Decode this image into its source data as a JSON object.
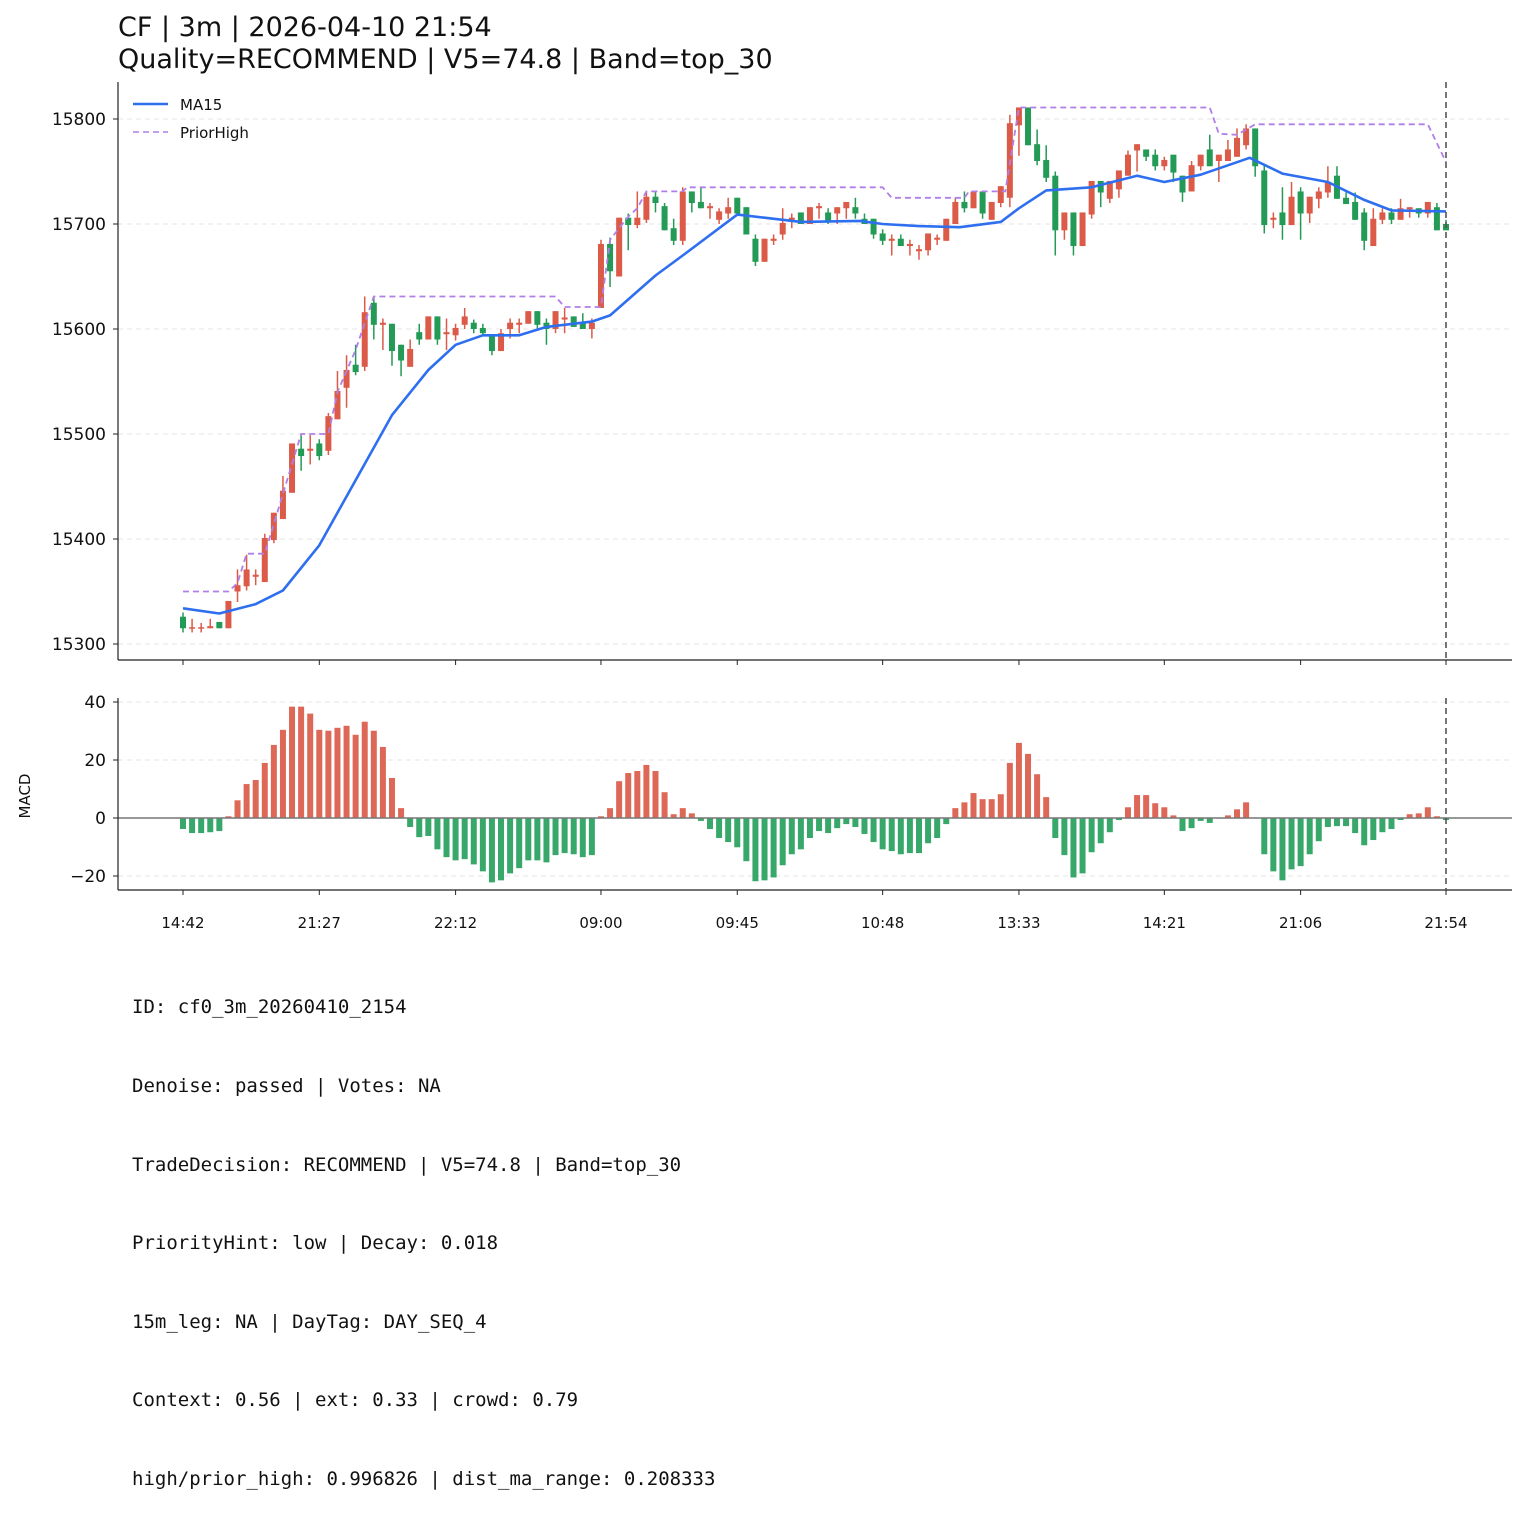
{
  "chart_data": {
    "type": "candlestick",
    "title_line1": "CF | 3m | 2026-04-10 21:54",
    "title_line2": "Quality=RECOMMEND | V5=74.8 | Band=top_30",
    "price_ylim": [
      15270,
      15835
    ],
    "price_yticks": [
      15300,
      15400,
      15500,
      15600,
      15700,
      15800
    ],
    "macd_ylim": [
      -25,
      42
    ],
    "macd_yticks": [
      40,
      20,
      0,
      -20
    ],
    "macd_ytick_labels": [
      "40",
      "20",
      "0",
      "−20"
    ],
    "macd_ylabel": "MACD",
    "xticks": [
      {
        "index": 0,
        "label": "14:42"
      },
      {
        "index": 15,
        "label": "21:27"
      },
      {
        "index": 30,
        "label": "22:12"
      },
      {
        "index": 46,
        "label": "09:00"
      },
      {
        "index": 61,
        "label": "09:45"
      },
      {
        "index": 77,
        "label": "10:48"
      },
      {
        "index": 92,
        "label": "13:33"
      },
      {
        "index": 108,
        "label": "14:21"
      },
      {
        "index": 123,
        "label": "21:06"
      },
      {
        "index": 139,
        "label": "21:54"
      }
    ],
    "marker_index": 139,
    "legend": [
      {
        "name": "MA15",
        "style": "solid"
      },
      {
        "name": "PriorHigh",
        "style": "dashed"
      }
    ],
    "legend_position": "top-left",
    "grid": true,
    "colors": {
      "up": "#dc5a48",
      "down": "#239a55",
      "macd_up": "#de6857",
      "macd_down": "#37a86a",
      "ma15": "#2e6ff0",
      "prior_high": "#b07fe8",
      "marker": "#555555"
    },
    "candles_ohlc": [
      [
        15326,
        15330,
        15311,
        15315
      ],
      [
        15315,
        15324,
        15311,
        15316
      ],
      [
        15315,
        15320,
        15311,
        15316
      ],
      [
        15315,
        15324,
        15315,
        15317
      ],
      [
        15321,
        15321,
        15315,
        15315
      ],
      [
        15315,
        15341,
        15315,
        15341
      ],
      [
        15350,
        15371,
        15340,
        15356
      ],
      [
        15355,
        15385,
        15351,
        15371
      ],
      [
        15364,
        15371,
        15356,
        15366
      ],
      [
        15359,
        15405,
        15359,
        15401
      ],
      [
        15399,
        15425,
        15396,
        15425
      ],
      [
        15419,
        15460,
        15419,
        15446
      ],
      [
        15444,
        15491,
        15444,
        15491
      ],
      [
        15486,
        15500,
        15465,
        15479
      ],
      [
        15484,
        15499,
        15471,
        15486
      ],
      [
        15491,
        15495,
        15475,
        15479
      ],
      [
        15484,
        15520,
        15480,
        15517
      ],
      [
        15514,
        15560,
        15514,
        15541
      ],
      [
        15544,
        15575,
        15525,
        15561
      ],
      [
        15566,
        15585,
        15556,
        15559
      ],
      [
        15564,
        15631,
        15560,
        15616
      ],
      [
        15625,
        15631,
        15590,
        15604
      ],
      [
        15604,
        15610,
        15580,
        15606
      ],
      [
        15605,
        15605,
        15565,
        15579
      ],
      [
        15585,
        15585,
        15555,
        15570
      ],
      [
        15564,
        15590,
        15564,
        15581
      ],
      [
        15597,
        15605,
        15585,
        15590
      ],
      [
        15590,
        15612,
        15590,
        15612
      ],
      [
        15612,
        15612,
        15585,
        15590
      ],
      [
        15595,
        15610,
        15580,
        15597
      ],
      [
        15594,
        15605,
        15589,
        15601
      ],
      [
        15604,
        15620,
        15600,
        15612
      ],
      [
        15606,
        15609,
        15596,
        15600
      ],
      [
        15601,
        15605,
        15593,
        15596
      ],
      [
        15595,
        15595,
        15575,
        15579
      ],
      [
        15579,
        15600,
        15579,
        15596
      ],
      [
        15600,
        15610,
        15591,
        15606
      ],
      [
        15604,
        15610,
        15596,
        15606
      ],
      [
        15605,
        15617,
        15605,
        15617
      ],
      [
        15617,
        15617,
        15600,
        15604
      ],
      [
        15606,
        15610,
        15585,
        15600
      ],
      [
        15600,
        15617,
        15596,
        15617
      ],
      [
        15609,
        15620,
        15596,
        15611
      ],
      [
        15612,
        15612,
        15602,
        15602
      ],
      [
        15606,
        15615,
        15600,
        15600
      ],
      [
        15600,
        15610,
        15591,
        15606
      ],
      [
        15620,
        15685,
        15620,
        15681
      ],
      [
        15681,
        15687,
        15640,
        15655
      ],
      [
        15650,
        15706,
        15650,
        15706
      ],
      [
        15706,
        15710,
        15675,
        15699
      ],
      [
        15699,
        15731,
        15696,
        15706
      ],
      [
        15704,
        15731,
        15701,
        15726
      ],
      [
        15726,
        15731,
        15711,
        15720
      ],
      [
        15717,
        15720,
        15694,
        15694
      ],
      [
        15696,
        15705,
        15680,
        15684
      ],
      [
        15684,
        15735,
        15680,
        15731
      ],
      [
        15731,
        15731,
        15711,
        15720
      ],
      [
        15721,
        15735,
        15715,
        15715
      ],
      [
        15715,
        15720,
        15705,
        15717
      ],
      [
        15704,
        15715,
        15700,
        15712
      ],
      [
        15710,
        15725,
        15705,
        15716
      ],
      [
        15725,
        15725,
        15710,
        15710
      ],
      [
        15716,
        15716,
        15690,
        15690
      ],
      [
        15686,
        15690,
        15660,
        15664
      ],
      [
        15664,
        15686,
        15664,
        15686
      ],
      [
        15684,
        15690,
        15680,
        15686
      ],
      [
        15690,
        15715,
        15685,
        15701
      ],
      [
        15704,
        15710,
        15696,
        15706
      ],
      [
        15711,
        15711,
        15700,
        15700
      ],
      [
        15700,
        15716,
        15700,
        15716
      ],
      [
        15715,
        15720,
        15705,
        15717
      ],
      [
        15711,
        15715,
        15700,
        15702
      ],
      [
        15710,
        15716,
        15700,
        15716
      ],
      [
        15715,
        15721,
        15705,
        15721
      ],
      [
        15716,
        15725,
        15705,
        15710
      ],
      [
        15705,
        15710,
        15700,
        15700
      ],
      [
        15705,
        15705,
        15686,
        15690
      ],
      [
        15691,
        15695,
        15680,
        15684
      ],
      [
        15684,
        15690,
        15670,
        15686
      ],
      [
        15686,
        15690,
        15679,
        15679
      ],
      [
        15679,
        15685,
        15670,
        15681
      ],
      [
        15674,
        15680,
        15666,
        15676
      ],
      [
        15675,
        15691,
        15670,
        15691
      ],
      [
        15685,
        15690,
        15680,
        15687
      ],
      [
        15684,
        15705,
        15684,
        15705
      ],
      [
        15700,
        15725,
        15700,
        15721
      ],
      [
        15721,
        15731,
        15711,
        15715
      ],
      [
        15715,
        15731,
        15715,
        15731
      ],
      [
        15731,
        15731,
        15705,
        15710
      ],
      [
        15704,
        15721,
        15704,
        15721
      ],
      [
        15720,
        15736,
        15716,
        15736
      ],
      [
        15725,
        15804,
        15716,
        15796
      ],
      [
        15794,
        15811,
        15765,
        15811
      ],
      [
        15811,
        15811,
        15775,
        15775
      ],
      [
        15776,
        15790,
        15756,
        15760
      ],
      [
        15761,
        15775,
        15740,
        15744
      ],
      [
        15746,
        15750,
        15670,
        15694
      ],
      [
        15694,
        15711,
        15685,
        15711
      ],
      [
        15711,
        15711,
        15670,
        15679
      ],
      [
        15679,
        15711,
        15679,
        15711
      ],
      [
        15709,
        15741,
        15705,
        15741
      ],
      [
        15741,
        15741,
        15716,
        15730
      ],
      [
        15724,
        15741,
        15720,
        15741
      ],
      [
        15733,
        15751,
        15725,
        15751
      ],
      [
        15746,
        15770,
        15746,
        15766
      ],
      [
        15770,
        15776,
        15750,
        15776
      ],
      [
        15771,
        15771,
        15760,
        15764
      ],
      [
        15766,
        15771,
        15751,
        15755
      ],
      [
        15755,
        15764,
        15751,
        15761
      ],
      [
        15766,
        15766,
        15740,
        15749
      ],
      [
        15746,
        15746,
        15721,
        15730
      ],
      [
        15731,
        15760,
        15731,
        15756
      ],
      [
        15755,
        15766,
        15751,
        15766
      ],
      [
        15771,
        15785,
        15755,
        15755
      ],
      [
        15760,
        15766,
        15740,
        15766
      ],
      [
        15760,
        15780,
        15760,
        15771
      ],
      [
        15764,
        15791,
        15764,
        15782
      ],
      [
        15775,
        15795,
        15771,
        15791
      ],
      [
        15791,
        15791,
        15745,
        15755
      ],
      [
        15751,
        15756,
        15691,
        15699
      ],
      [
        15704,
        15711,
        15696,
        15706
      ],
      [
        15711,
        15735,
        15685,
        15699
      ],
      [
        15699,
        15740,
        15699,
        15726
      ],
      [
        15731,
        15735,
        15685,
        15710
      ],
      [
        15710,
        15726,
        15701,
        15726
      ],
      [
        15724,
        15735,
        15715,
        15731
      ],
      [
        15730,
        15755,
        15725,
        15740
      ],
      [
        15746,
        15755,
        15724,
        15724
      ],
      [
        15725,
        15730,
        15719,
        15719
      ],
      [
        15721,
        15730,
        15704,
        15704
      ],
      [
        15711,
        15715,
        15675,
        15684
      ],
      [
        15679,
        15715,
        15679,
        15705
      ],
      [
        15704,
        15715,
        15700,
        15711
      ],
      [
        15711,
        15715,
        15700,
        15704
      ],
      [
        15704,
        15724,
        15704,
        15715
      ],
      [
        15714,
        15716,
        15706,
        15716
      ],
      [
        15715,
        15715,
        15706,
        15710
      ],
      [
        15710,
        15721,
        15706,
        15721
      ],
      [
        15716,
        15720,
        15694,
        15694
      ],
      [
        15700,
        15704,
        15694,
        15694
      ]
    ],
    "ma15": [
      [
        0,
        15334
      ],
      [
        4,
        15329
      ],
      [
        8,
        15338
      ],
      [
        11,
        15351
      ],
      [
        15,
        15394
      ],
      [
        19,
        15456
      ],
      [
        23,
        15518
      ],
      [
        27,
        15561
      ],
      [
        30,
        15585
      ],
      [
        33,
        15594
      ],
      [
        37,
        15594
      ],
      [
        40,
        15602
      ],
      [
        45,
        15607
      ],
      [
        47,
        15613
      ],
      [
        52,
        15651
      ],
      [
        55,
        15670
      ],
      [
        61,
        15709
      ],
      [
        64,
        15706
      ],
      [
        68,
        15702
      ],
      [
        74.5,
        15703
      ],
      [
        77,
        15700
      ],
      [
        81,
        15698
      ],
      [
        85.5,
        15697
      ],
      [
        90,
        15702
      ],
      [
        92,
        15715
      ],
      [
        95,
        15732
      ],
      [
        100,
        15735
      ],
      [
        105,
        15746
      ],
      [
        108,
        15740
      ],
      [
        112,
        15747
      ],
      [
        117.4,
        15763
      ],
      [
        121,
        15748
      ],
      [
        126,
        15740
      ],
      [
        130,
        15723
      ],
      [
        133,
        15713
      ],
      [
        139,
        15712
      ]
    ],
    "prior_high": [
      [
        0,
        15350
      ],
      [
        5,
        15350
      ],
      [
        6,
        15358
      ],
      [
        7,
        15386
      ],
      [
        9,
        15386
      ],
      [
        13,
        15500
      ],
      [
        16,
        15500
      ],
      [
        17,
        15540
      ],
      [
        19,
        15580
      ],
      [
        21,
        15631
      ],
      [
        41,
        15631
      ],
      [
        42,
        15621
      ],
      [
        46,
        15621
      ],
      [
        47,
        15685
      ],
      [
        49,
        15707
      ],
      [
        50,
        15715
      ],
      [
        51,
        15731
      ],
      [
        55,
        15731
      ],
      [
        55.5,
        15735
      ],
      [
        77,
        15735
      ],
      [
        78,
        15725
      ],
      [
        86,
        15725
      ],
      [
        86.5,
        15731
      ],
      [
        90.5,
        15731
      ],
      [
        92,
        15811
      ],
      [
        113,
        15811
      ],
      [
        114,
        15786
      ],
      [
        116,
        15785
      ],
      [
        118,
        15795
      ],
      [
        137,
        15795
      ],
      [
        139,
        15759
      ]
    ],
    "macd_hist": [
      -3.8,
      -5.2,
      -5.2,
      -4.9,
      -4.5,
      0.6,
      6.1,
      11.7,
      13.1,
      19.0,
      25.2,
      30.4,
      38.4,
      38.4,
      36.0,
      30.4,
      30.1,
      31.1,
      31.8,
      28.7,
      33.2,
      30.1,
      24.5,
      13.8,
      3.4,
      -3.1,
      -6.6,
      -6.2,
      -10.8,
      -13.5,
      -14.6,
      -14.2,
      -16.0,
      -18.4,
      -22.2,
      -21.5,
      -19.1,
      -17.3,
      -14.6,
      -14.6,
      -15.3,
      -12.8,
      -12.1,
      -12.5,
      -13.5,
      -12.8,
      0.6,
      3.4,
      12.7,
      15.5,
      16.2,
      18.3,
      16.2,
      8.9,
      1.3,
      3.4,
      1.6,
      -1.0,
      -3.8,
      -6.9,
      -8.3,
      -10.1,
      -14.9,
      -21.8,
      -21.5,
      -20.5,
      -16.3,
      -12.5,
      -10.8,
      -6.9,
      -4.5,
      -5.2,
      -3.5,
      -2.1,
      -3.1,
      -5.5,
      -8.3,
      -10.8,
      -11.4,
      -12.5,
      -12.1,
      -12.1,
      -8.7,
      -6.9,
      -2.1,
      3.4,
      5.4,
      8.6,
      6.5,
      6.5,
      8.2,
      19.0,
      25.9,
      22.1,
      15.1,
      7.2,
      -6.9,
      -12.8,
      -20.5,
      -19.1,
      -11.8,
      -8.7,
      -4.9,
      -0.7,
      3.7,
      7.9,
      7.9,
      5.1,
      3.7,
      0.9,
      -4.5,
      -3.5,
      -1.0,
      -1.7,
      -0.2,
      0.9,
      3.0,
      5.4,
      0.1,
      -12.5,
      -18.4,
      -21.5,
      -17.7,
      -16.6,
      -12.5,
      -8.0,
      -3.1,
      -2.8,
      -2.8,
      -5.2,
      -9.4,
      -7.6,
      -4.9,
      -3.8,
      -0.7,
      1.3,
      1.6,
      3.7,
      0.6,
      -0.7
    ]
  },
  "footer": [
    "ID: cf0_3m_20260410_2154",
    "Denoise: passed | Votes: NA",
    "TradeDecision: RECOMMEND | V5=74.8 | Band=top_30",
    "PriorityHint: low | Decay: 0.018",
    "15m_leg: NA | DayTag: DAY_SEQ_4",
    "Context: 0.56 | ext: 0.33 | crowd: 0.79",
    "high/prior_high: 0.996826 | dist_ma_range: 0.208333"
  ]
}
